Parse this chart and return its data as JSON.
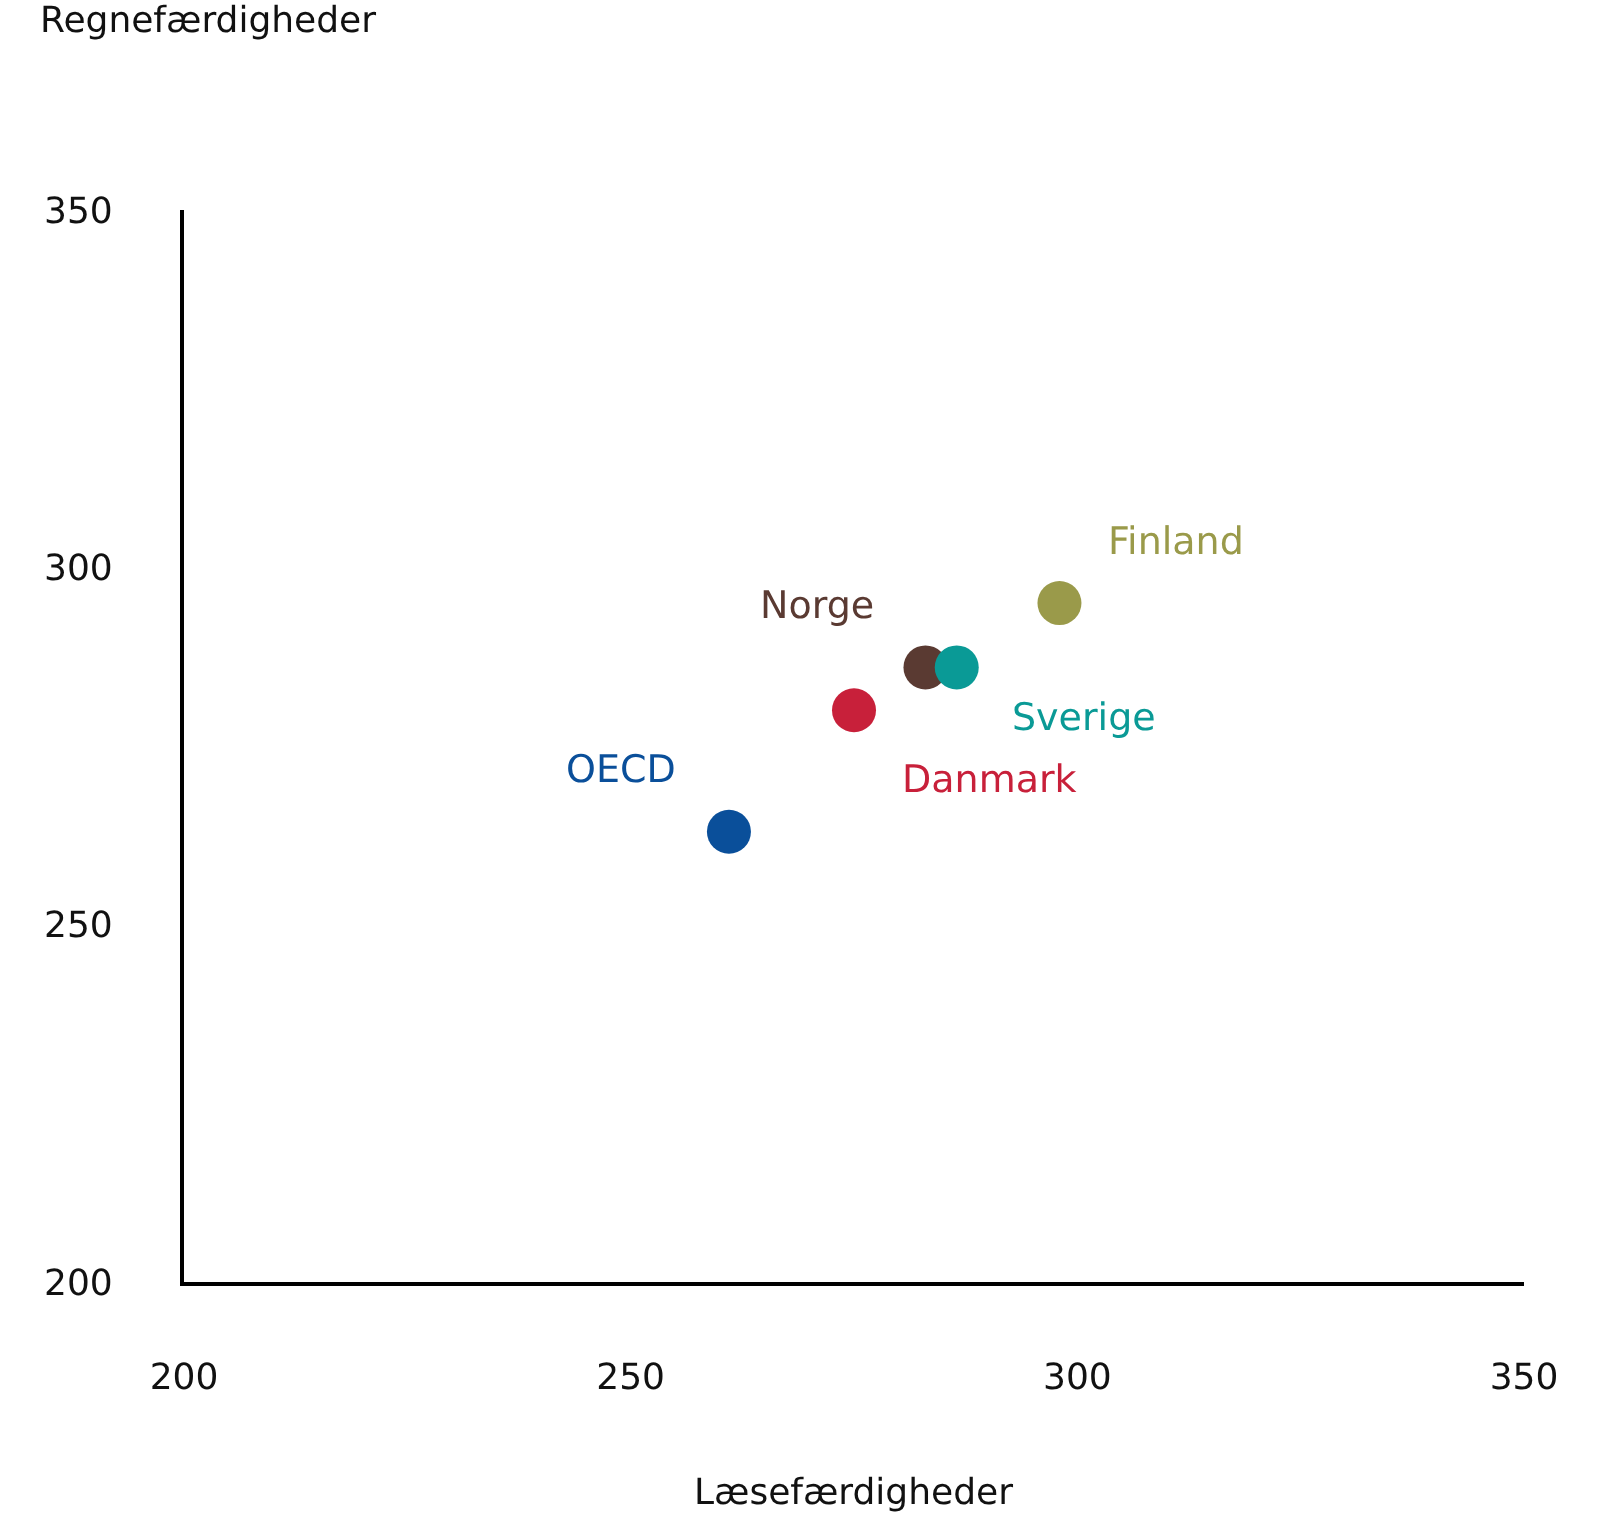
{
  "chart_data": {
    "type": "scatter",
    "xlabel": "Læsefærdigheder",
    "ylabel": "Regnefærdigheder",
    "xlim": [
      200,
      350
    ],
    "ylim": [
      200,
      350
    ],
    "xticks": [
      200,
      250,
      300,
      350
    ],
    "yticks": [
      200,
      250,
      300,
      350
    ],
    "grid": false,
    "legend": false,
    "marker": "circle",
    "series": [
      {
        "name": "OECD",
        "color": "#0a4f9a",
        "x": [
          261
        ],
        "values": [
          263
        ]
      },
      {
        "name": "Danmark",
        "color": "#c8203a",
        "x": [
          275
        ],
        "values": [
          280
        ]
      },
      {
        "name": "Norge",
        "color": "#5a3a32",
        "x": [
          283
        ],
        "values": [
          286
        ]
      },
      {
        "name": "Sverige",
        "color": "#0a9a96",
        "x": [
          286.5
        ],
        "values": [
          286
        ]
      },
      {
        "name": "Finland",
        "color": "#9a9a4a",
        "x": [
          298
        ],
        "values": [
          295
        ]
      }
    ]
  }
}
